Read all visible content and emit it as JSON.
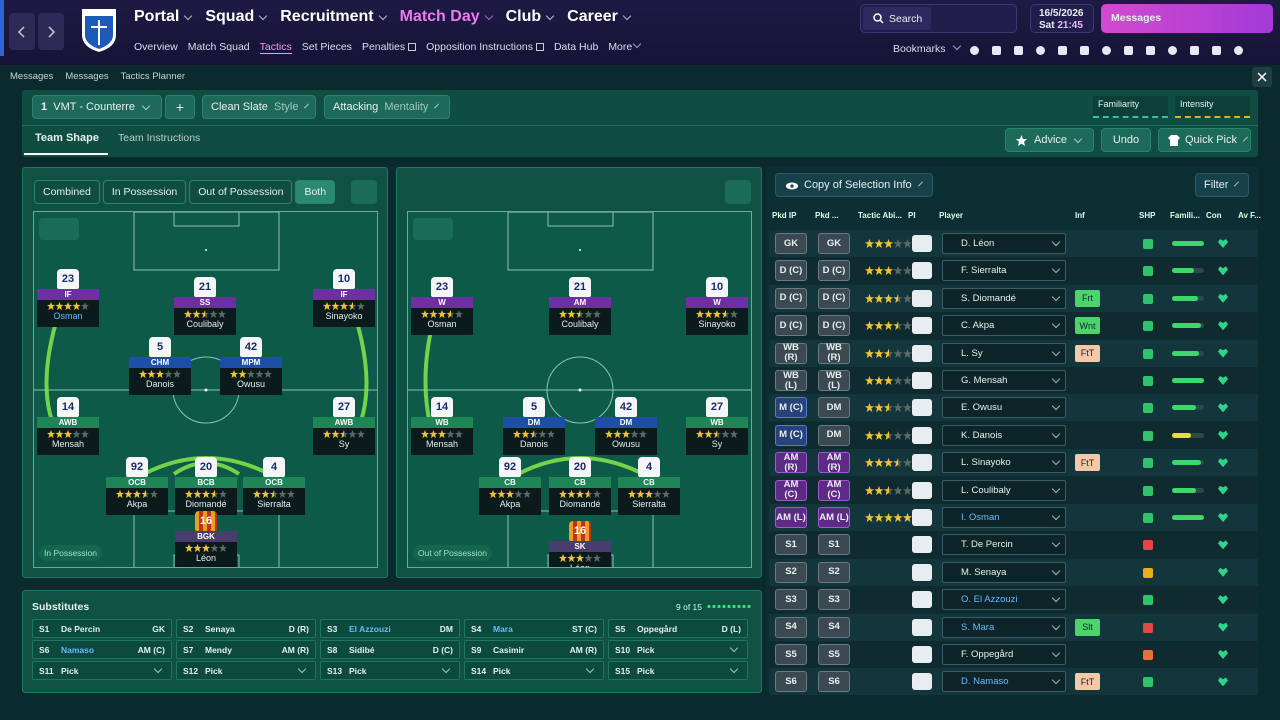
{
  "nav": {
    "main": [
      "Portal",
      "Squad",
      "Recruitment",
      "Match Day",
      "Club",
      "Career"
    ],
    "sub": [
      "Overview",
      "Match Squad",
      "Tactics",
      "Set Pieces",
      "Penalties",
      "Opposition Instructions",
      "Data Hub",
      "More"
    ],
    "search": "Search",
    "date": "16/5/2026",
    "day": "Sat",
    "time": "21:45",
    "messages": "Messages",
    "bookmarks": "Bookmarks"
  },
  "breadcrumb": [
    "Messages",
    "Messages",
    "Tactics Planner"
  ],
  "toolbar": {
    "slot": "1",
    "tactic": "VMT - Counterre",
    "add": "+",
    "style_value": "Clean Slate",
    "style_label": "Style",
    "mentality_value": "Attacking",
    "mentality_label": "Mentality",
    "familiarity": "Familiarity",
    "intensity": "Intensity"
  },
  "tabs": [
    "Team Shape",
    "Team Instructions"
  ],
  "actions": [
    "Advice",
    "Undo",
    "Quick Pick"
  ],
  "shape_modes": [
    "Combined",
    "In Possession",
    "Out of Possession",
    "Both"
  ],
  "pitch_in": {
    "label": "In Possession",
    "players": [
      {
        "num": "23",
        "role": "IF",
        "name": "Osman",
        "rating": 4
      },
      {
        "num": "21",
        "role": "SS",
        "name": "Coulibaly",
        "rating": 2.5
      },
      {
        "num": "10",
        "role": "IF",
        "name": "Sinayoko",
        "rating": 3.5
      },
      {
        "num": "5",
        "role": "CHM",
        "name": "Danois",
        "rating": 3
      },
      {
        "num": "42",
        "role": "MPM",
        "name": "Owusu",
        "rating": 2
      },
      {
        "num": "14",
        "role": "AWB",
        "name": "Mensah",
        "rating": 3
      },
      {
        "num": "27",
        "role": "AWB",
        "name": "Sy",
        "rating": 2.5
      },
      {
        "num": "92",
        "role": "OCB",
        "name": "Akpa",
        "rating": 3.5
      },
      {
        "num": "20",
        "role": "BCB",
        "name": "Diomandé",
        "rating": 3.5
      },
      {
        "num": "4",
        "role": "OCB",
        "name": "Sierralta",
        "rating": 2.5
      },
      {
        "num": "16",
        "role": "BGK",
        "name": "Léon",
        "rating": 3
      }
    ]
  },
  "pitch_out": {
    "label": "Out of Possession",
    "players": [
      {
        "num": "23",
        "role": "W",
        "name": "Osman",
        "rating": 3.5
      },
      {
        "num": "21",
        "role": "AM",
        "name": "Coulibaly",
        "rating": 2.5
      },
      {
        "num": "10",
        "role": "W",
        "name": "Sinayoko",
        "rating": 3.5
      },
      {
        "num": "14",
        "role": "WB",
        "name": "Mensah",
        "rating": 3
      },
      {
        "num": "5",
        "role": "DM",
        "name": "Danois",
        "rating": 2.5
      },
      {
        "num": "42",
        "role": "DM",
        "name": "Owusu",
        "rating": 3
      },
      {
        "num": "27",
        "role": "WB",
        "name": "Sy",
        "rating": 2.5
      },
      {
        "num": "92",
        "role": "CB",
        "name": "Akpa",
        "rating": 3
      },
      {
        "num": "20",
        "role": "CB",
        "name": "Diomandé",
        "rating": 3.5
      },
      {
        "num": "4",
        "role": "CB",
        "name": "Sierralta",
        "rating": 3
      },
      {
        "num": "16",
        "role": "SK",
        "name": "Léon",
        "rating": 3
      }
    ]
  },
  "subs": {
    "title": "Substitutes",
    "count": "9 of 15",
    "rows": [
      {
        "slot": "S1",
        "name": "De Percin",
        "pos": "GK"
      },
      {
        "slot": "S2",
        "name": "Senaya",
        "pos": "D (R)"
      },
      {
        "slot": "S3",
        "name": "El Azzouzi",
        "pos": "DM"
      },
      {
        "slot": "S4",
        "name": "Mara",
        "pos": "ST (C)"
      },
      {
        "slot": "S5",
        "name": "Oppegård",
        "pos": "D (L)"
      },
      {
        "slot": "S6",
        "name": "Namaso",
        "pos": "AM (C)"
      },
      {
        "slot": "S7",
        "name": "Mendy",
        "pos": "AM (R)"
      },
      {
        "slot": "S8",
        "name": "Sidibé",
        "pos": "D (C)"
      },
      {
        "slot": "S9",
        "name": "Casimir",
        "pos": "AM (R)"
      },
      {
        "slot": "S10",
        "name": "Pick"
      },
      {
        "slot": "S11",
        "name": "Pick"
      },
      {
        "slot": "S12",
        "name": "Pick"
      },
      {
        "slot": "S13",
        "name": "Pick"
      },
      {
        "slot": "S14",
        "name": "Pick"
      },
      {
        "slot": "S15",
        "name": "Pick"
      }
    ]
  },
  "table": {
    "copy": "Copy of Selection Info",
    "filter": "Filter",
    "headers": [
      "Pkd IP",
      "Pkd ...",
      "Tactic Abi...",
      "PI",
      "Player",
      "Inf",
      "SHP",
      "Famili...",
      "Con",
      "Av F..."
    ],
    "rows": [
      {
        "ip": "GK",
        "op": "GK",
        "rating": 3,
        "player": "D. Léon",
        "familiarity": 100
      },
      {
        "ip": "D (C)",
        "op": "D (C)",
        "rating": 3,
        "player": "F. Sierralta",
        "familiarity": 70
      },
      {
        "ip": "D (C)",
        "op": "D (C)",
        "rating": 3.5,
        "player": "S. Diomandé",
        "inf": "Frt",
        "familiarity": 80
      },
      {
        "ip": "D (C)",
        "op": "D (C)",
        "rating": 3.5,
        "player": "C. Akpa",
        "inf": "Wnt",
        "familiarity": 90
      },
      {
        "ip": "WB (R)",
        "op": "WB (R)",
        "rating": 2.5,
        "player": "L. Sy",
        "inf": "FtT",
        "familiarity": 85
      },
      {
        "ip": "WB (L)",
        "op": "WB (L)",
        "rating": 3,
        "player": "G. Mensah",
        "familiarity": 100
      },
      {
        "ip": "M (C)",
        "op": "DM",
        "rating": 2.5,
        "player": "E. Owusu",
        "familiarity": 75
      },
      {
        "ip": "M (C)",
        "op": "DM",
        "rating": 2.5,
        "player": "K. Danois",
        "familiarity": 60
      },
      {
        "ip": "AM (R)",
        "op": "AM (R)",
        "rating": 3.5,
        "player": "L. Sinayoko",
        "inf": "FtT",
        "familiarity": 90
      },
      {
        "ip": "AM (C)",
        "op": "AM (C)",
        "rating": 2.5,
        "player": "L. Coulibaly",
        "familiarity": 75
      },
      {
        "ip": "AM (L)",
        "op": "AM (L)",
        "rating": 5,
        "player": "I. Osman",
        "familiarity": 100
      },
      {
        "ip": "S1",
        "op": "S1",
        "player": "T. De Percin"
      },
      {
        "ip": "S2",
        "op": "S2",
        "player": "M. Senaya"
      },
      {
        "ip": "S3",
        "op": "S3",
        "player": "O. El Azzouzi"
      },
      {
        "ip": "S4",
        "op": "S4",
        "player": "S. Mara",
        "inf": "Slt"
      },
      {
        "ip": "S5",
        "op": "S5",
        "player": "F. Oppegård"
      },
      {
        "ip": "S6",
        "op": "S6",
        "player": "D. Namaso",
        "inf": "FtT"
      }
    ]
  }
}
